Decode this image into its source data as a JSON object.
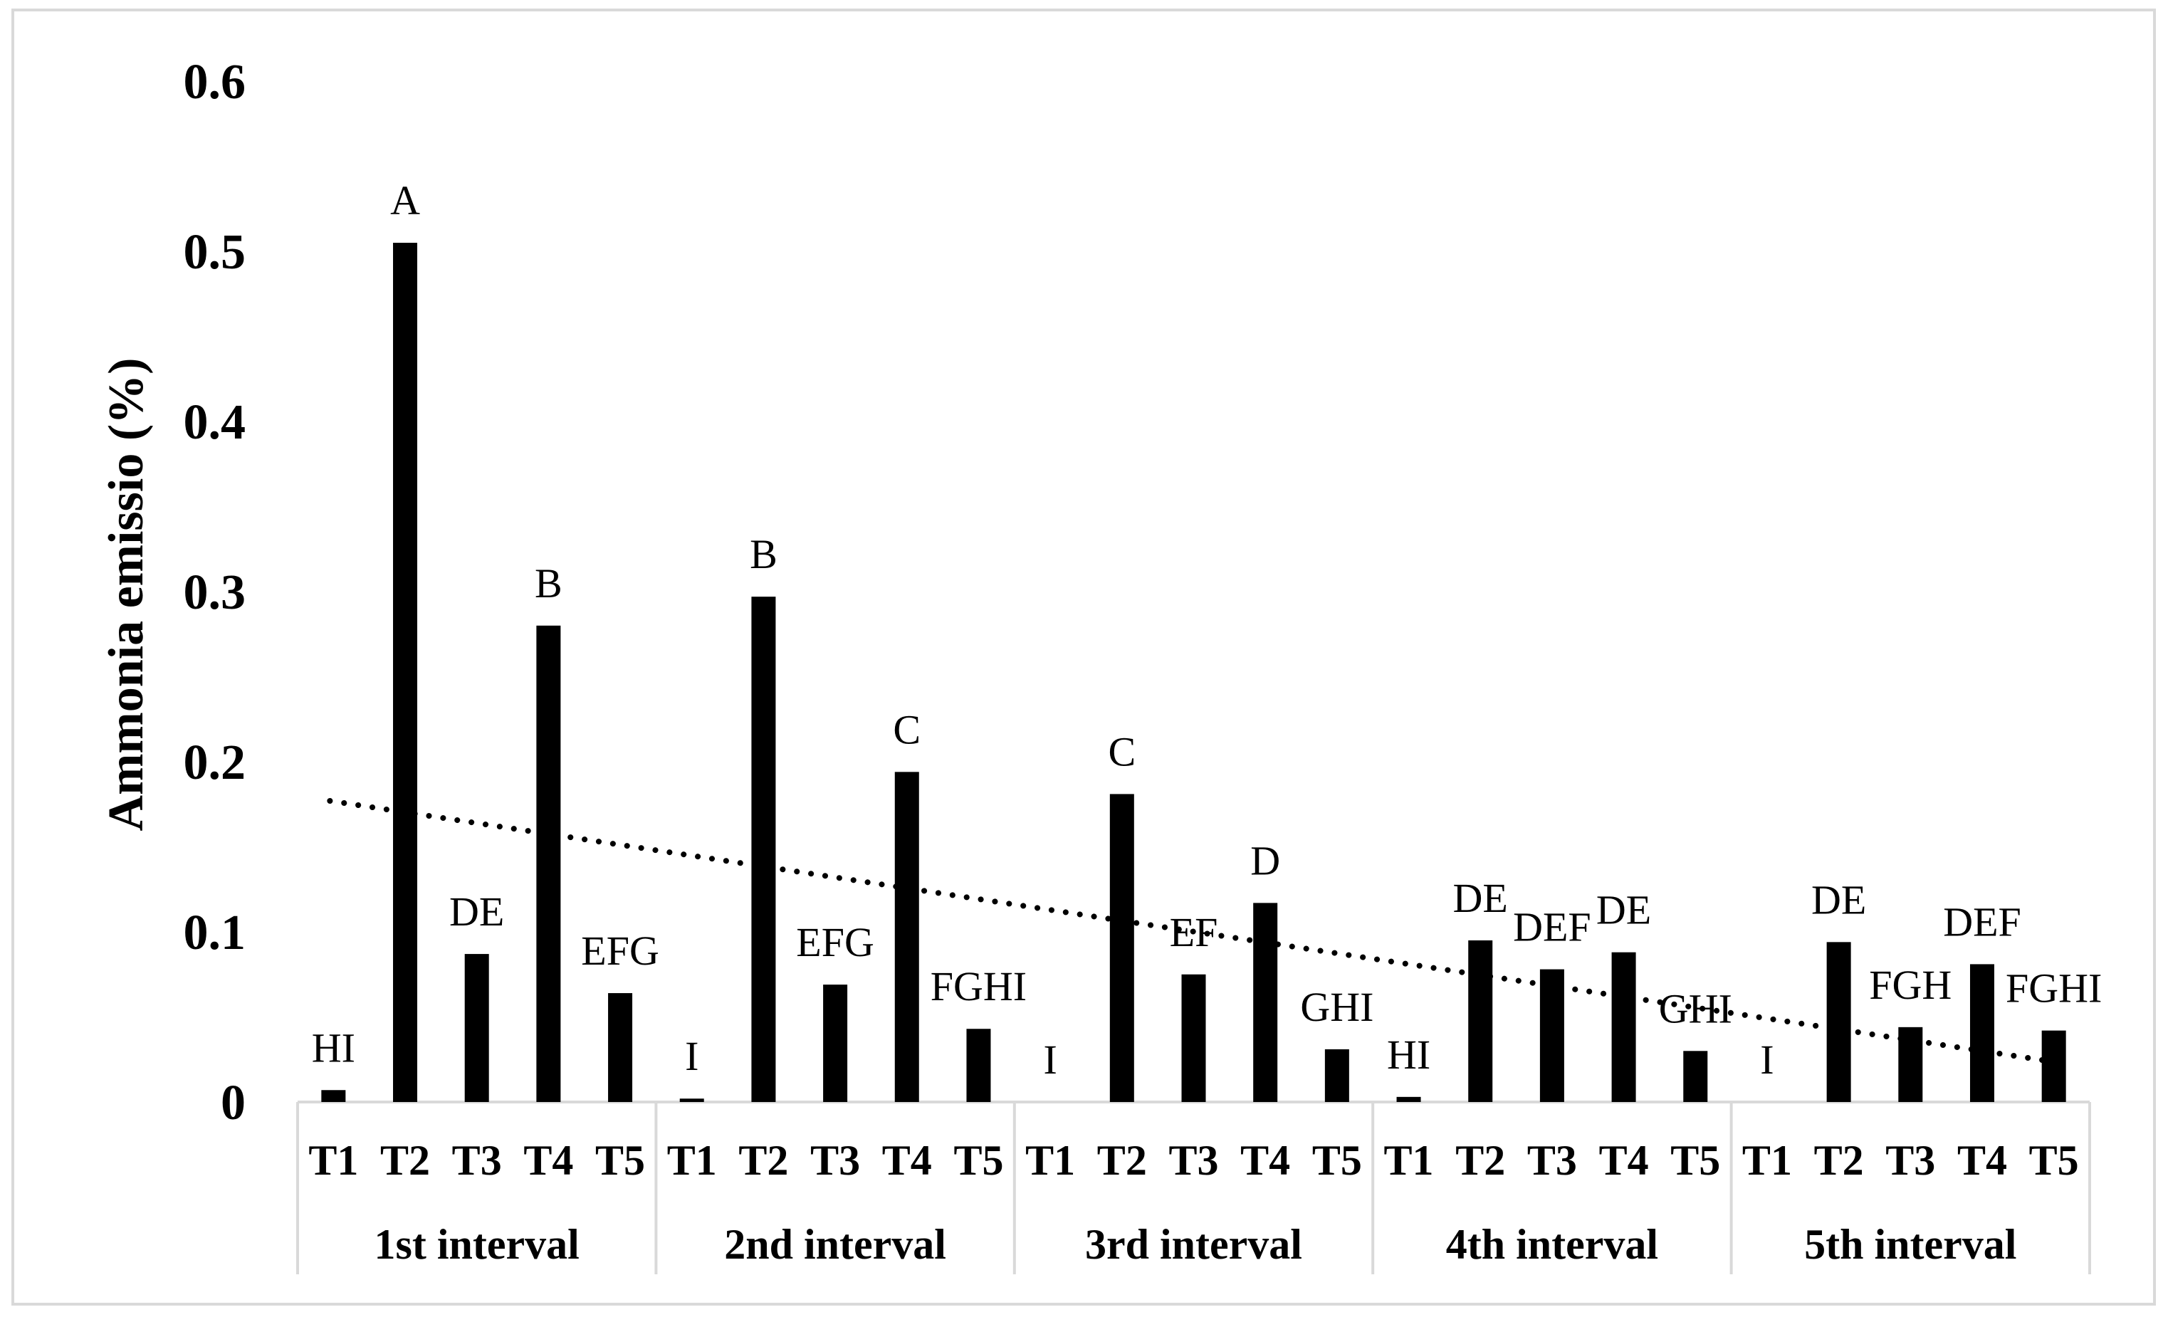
{
  "chart_data": {
    "type": "bar",
    "ylabel": "Ammonia emissio (%)",
    "ylim": [
      0,
      0.6
    ],
    "yticks": [
      {
        "value": 0,
        "label": "0"
      },
      {
        "value": 0.1,
        "label": "0.1"
      },
      {
        "value": 0.2,
        "label": "0.2"
      },
      {
        "value": 0.3,
        "label": "0.3"
      },
      {
        "value": 0.4,
        "label": "0.4"
      },
      {
        "value": 0.5,
        "label": "0.5"
      },
      {
        "value": 0.6,
        "label": "0.6"
      }
    ],
    "grid": false,
    "bar_color": "#000000",
    "axis_color": "#d9d9d9",
    "trendline": {
      "style": "dotted",
      "color": "#000000",
      "start": 0.177,
      "end": 0.023
    },
    "groups": [
      {
        "name": "1st interval",
        "bars": [
          {
            "category": "T1",
            "value": 0.007,
            "label": "HI"
          },
          {
            "category": "T2",
            "value": 0.505,
            "label": "A"
          },
          {
            "category": "T3",
            "value": 0.087,
            "label": "DE"
          },
          {
            "category": "T4",
            "value": 0.28,
            "label": "B"
          },
          {
            "category": "T5",
            "value": 0.064,
            "label": "EFG"
          }
        ]
      },
      {
        "name": "2nd interval",
        "bars": [
          {
            "category": "T1",
            "value": 0.002,
            "label": "I"
          },
          {
            "category": "T2",
            "value": 0.297,
            "label": "B"
          },
          {
            "category": "T3",
            "value": 0.069,
            "label": "EFG"
          },
          {
            "category": "T4",
            "value": 0.194,
            "label": "C"
          },
          {
            "category": "T5",
            "value": 0.043,
            "label": "FGHI"
          }
        ]
      },
      {
        "name": "3rd interval",
        "bars": [
          {
            "category": "T1",
            "value": 0.0,
            "label": "I"
          },
          {
            "category": "T2",
            "value": 0.181,
            "label": "C"
          },
          {
            "category": "T3",
            "value": 0.075,
            "label": "EF"
          },
          {
            "category": "T4",
            "value": 0.117,
            "label": "D"
          },
          {
            "category": "T5",
            "value": 0.031,
            "label": "GHI"
          }
        ]
      },
      {
        "name": "4th interval",
        "bars": [
          {
            "category": "T1",
            "value": 0.003,
            "label": "HI"
          },
          {
            "category": "T2",
            "value": 0.095,
            "label": "DE"
          },
          {
            "category": "T3",
            "value": 0.078,
            "label": "DEF"
          },
          {
            "category": "T4",
            "value": 0.088,
            "label": "DE"
          },
          {
            "category": "T5",
            "value": 0.03,
            "label": "GHI"
          }
        ]
      },
      {
        "name": "5th interval",
        "bars": [
          {
            "category": "T1",
            "value": 0.0,
            "label": "I"
          },
          {
            "category": "T2",
            "value": 0.094,
            "label": "DE"
          },
          {
            "category": "T3",
            "value": 0.044,
            "label": "FGH"
          },
          {
            "category": "T4",
            "value": 0.081,
            "label": "DEF"
          },
          {
            "category": "T5",
            "value": 0.042,
            "label": "FGHI"
          }
        ]
      }
    ]
  }
}
